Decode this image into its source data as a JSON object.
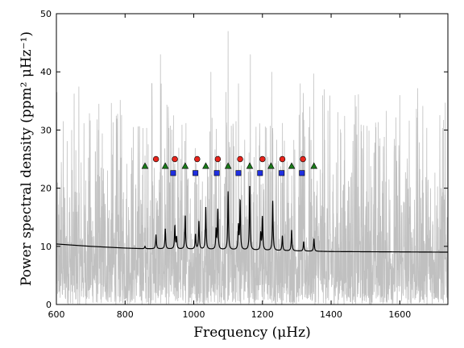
{
  "chart_data": {
    "type": "line",
    "title": "",
    "xlabel": "Frequency (μHz)",
    "ylabel": "Power spectral density (ppm² μHz⁻¹)",
    "xlim": [
      600,
      1740
    ],
    "ylim": [
      0,
      50
    ],
    "xticks": [
      600,
      800,
      1000,
      1200,
      1400,
      1600
    ],
    "yticks": [
      0,
      10,
      20,
      30,
      40,
      50
    ],
    "grid": false,
    "legend": "none",
    "colors": {
      "raw_spectrum": "#c0c0c0",
      "smoothed_fit": "#000000",
      "circle_markers": "#e8251c",
      "square_markers": "#1f2fe0",
      "triangle_markers": "#1a7a1a"
    },
    "series": [
      {
        "role": "raw_spectrum",
        "style": "line",
        "description_values": {
          "typical_range": [
            0,
            28
          ],
          "peak_spikes": [
            [
              878,
              38
            ],
            [
              903,
              43
            ],
            [
              1050,
              40
            ],
            [
              1100,
              47
            ],
            [
              1130,
              38
            ],
            [
              1165,
              43
            ],
            [
              1227,
              40
            ],
            [
              1310,
              38
            ],
            [
              1380,
              37
            ],
            [
              1470,
              36
            ],
            [
              1600,
              36
            ]
          ]
        }
      },
      {
        "role": "smoothed_fit",
        "style": "line",
        "background": [
          [
            600,
            10.4
          ],
          [
            700,
            10.0
          ],
          [
            800,
            9.7
          ],
          [
            850,
            9.6
          ],
          [
            1000,
            9.5
          ],
          [
            1400,
            9.1
          ],
          [
            1740,
            9.0
          ]
        ],
        "peaks": [
          {
            "x": 858,
            "y": 10.0
          },
          {
            "x": 890,
            "y": 12.0
          },
          {
            "x": 917,
            "y": 13.0
          },
          {
            "x": 945,
            "y": 13.5
          },
          {
            "x": 950,
            "y": 11.5
          },
          {
            "x": 975,
            "y": 15.3
          },
          {
            "x": 1005,
            "y": 12.0
          },
          {
            "x": 1015,
            "y": 14.3
          },
          {
            "x": 1035,
            "y": 16.8
          },
          {
            "x": 1065,
            "y": 12.8
          },
          {
            "x": 1070,
            "y": 16.2
          },
          {
            "x": 1100,
            "y": 19.4
          },
          {
            "x": 1130,
            "y": 13.4
          },
          {
            "x": 1135,
            "y": 17.8
          },
          {
            "x": 1163,
            "y": 20.5
          },
          {
            "x": 1195,
            "y": 12.2
          },
          {
            "x": 1200,
            "y": 15.0
          },
          {
            "x": 1230,
            "y": 17.8
          },
          {
            "x": 1258,
            "y": 11.8
          },
          {
            "x": 1285,
            "y": 12.8
          },
          {
            "x": 1320,
            "y": 10.8
          },
          {
            "x": 1350,
            "y": 11.3
          }
        ]
      },
      {
        "role": "circle_markers",
        "style": "marker",
        "marker": "circle",
        "points": [
          [
            890,
            25.0
          ],
          [
            945,
            25.0
          ],
          [
            1010,
            25.0
          ],
          [
            1070,
            25.0
          ],
          [
            1135,
            25.0
          ],
          [
            1200,
            25.0
          ],
          [
            1258,
            25.0
          ],
          [
            1318,
            25.0
          ]
        ]
      },
      {
        "role": "square_markers",
        "style": "marker",
        "marker": "square",
        "points": [
          [
            940,
            22.6
          ],
          [
            1005,
            22.6
          ],
          [
            1067,
            22.6
          ],
          [
            1130,
            22.6
          ],
          [
            1193,
            22.6
          ],
          [
            1256,
            22.6
          ],
          [
            1315,
            22.6
          ]
        ]
      },
      {
        "role": "triangle_markers",
        "style": "marker",
        "marker": "triangle",
        "points": [
          [
            858,
            23.8
          ],
          [
            917,
            23.8
          ],
          [
            975,
            23.8
          ],
          [
            1035,
            23.8
          ],
          [
            1100,
            23.8
          ],
          [
            1163,
            23.8
          ],
          [
            1225,
            23.8
          ],
          [
            1285,
            23.8
          ],
          [
            1350,
            23.8
          ]
        ]
      }
    ]
  }
}
